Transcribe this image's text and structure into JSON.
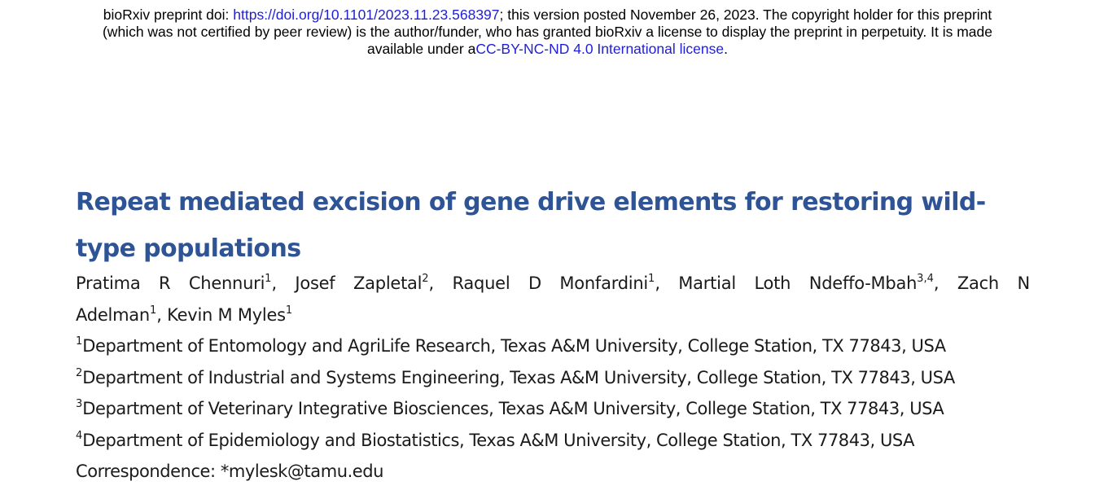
{
  "banner": {
    "prefix": "bioRxiv preprint doi: ",
    "doi_link": "https://doi.org/10.1101/2023.11.23.568397",
    "after_doi": "; this version posted November 26, 2023. The copyright holder for this preprint",
    "line2": "(which was not certified by peer review) is the author/funder, who has granted bioRxiv a license to display the preprint in perpetuity. It is made",
    "line3_prefix": "available under a",
    "license_link": "CC-BY-NC-ND 4.0 International license",
    "line3_suffix": ".",
    "link_color": "#1f1fd6"
  },
  "paper": {
    "title_line1": "Repeat mediated excision of gene drive elements for restoring wild-",
    "title_line2": "type populations",
    "title_color": "#2f5496",
    "authors": [
      {
        "name": "Pratima R Chennuri",
        "sup": "1",
        "sep": ","
      },
      {
        "name": "Josef Zapletal",
        "sup": "2",
        "sep": ","
      },
      {
        "name": "Raquel D Monfardini",
        "sup": "1",
        "sep": ","
      },
      {
        "name": "Martial Loth Ndeffo-Mbah",
        "sup": "3,4",
        "sep": ","
      },
      {
        "name": "Zach N Adelman",
        "sup": "1",
        "sep": ","
      },
      {
        "name": "Kevin M Myles",
        "sup": "1",
        "sep": ""
      }
    ],
    "affiliations": [
      {
        "sup": "1",
        "text": "Department of Entomology and AgriLife Research, Texas A&M University, College Station, TX 77843, USA"
      },
      {
        "sup": "2",
        "text": "Department of Industrial and Systems Engineering, Texas A&M University, College Station, TX 77843, USA"
      },
      {
        "sup": "3",
        "text": "Department of Veterinary Integrative Biosciences, Texas A&M University, College Station, TX 77843, USA"
      },
      {
        "sup": "4",
        "text": "Department of Epidemiology and Biostatistics, Texas A&M University, College Station, TX 77843, USA"
      }
    ],
    "correspondence": "Correspondence: *mylesk@tamu.edu"
  }
}
